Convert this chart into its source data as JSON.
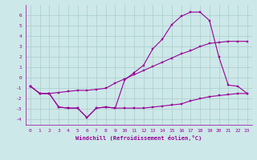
{
  "xlabel": "Windchill (Refroidissement éolien,°C)",
  "background_color": "#cde8e8",
  "line_color": "#990099",
  "grid_color": "#aacccc",
  "xlim": [
    -0.5,
    23.5
  ],
  "ylim": [
    -4.5,
    7.0
  ],
  "yticks": [
    -4,
    -3,
    -2,
    -1,
    0,
    1,
    2,
    3,
    4,
    5,
    6
  ],
  "xticks": [
    0,
    1,
    2,
    3,
    4,
    5,
    6,
    7,
    8,
    9,
    10,
    11,
    12,
    13,
    14,
    15,
    16,
    17,
    18,
    19,
    20,
    21,
    22,
    23
  ],
  "line1_x": [
    0,
    1,
    2,
    3,
    4,
    5,
    6,
    7,
    8,
    9,
    10,
    11,
    12,
    13,
    14,
    15,
    16,
    17,
    18,
    19,
    20,
    21,
    22,
    23
  ],
  "line1_y": [
    -0.8,
    -1.5,
    -1.5,
    -2.8,
    -2.9,
    -2.9,
    -3.8,
    -2.9,
    -2.8,
    -2.9,
    -2.9,
    -2.9,
    -2.9,
    -2.8,
    -2.7,
    -2.6,
    -2.5,
    -2.2,
    -2.0,
    -1.8,
    -1.7,
    -1.6,
    -1.5,
    -1.5
  ],
  "line2_x": [
    0,
    1,
    2,
    3,
    4,
    5,
    6,
    7,
    8,
    9,
    10,
    11,
    12,
    13,
    14,
    15,
    16,
    17,
    18,
    19,
    20,
    21,
    22,
    23
  ],
  "line2_y": [
    -0.8,
    -1.5,
    -1.5,
    -1.4,
    -1.3,
    -1.2,
    -1.2,
    -1.1,
    -1.0,
    -0.5,
    -0.1,
    0.3,
    0.7,
    1.1,
    1.5,
    1.9,
    2.3,
    2.6,
    3.0,
    3.3,
    3.4,
    3.5,
    3.5,
    3.5
  ],
  "line3_x": [
    0,
    1,
    2,
    3,
    4,
    5,
    6,
    7,
    8,
    9,
    10,
    11,
    12,
    13,
    14,
    15,
    16,
    17,
    18,
    19,
    20,
    21,
    22,
    23
  ],
  "line3_y": [
    -0.8,
    -1.5,
    -1.5,
    -2.8,
    -2.9,
    -2.9,
    -3.8,
    -2.9,
    -2.8,
    -2.9,
    -0.2,
    0.5,
    1.2,
    2.8,
    3.7,
    5.1,
    5.9,
    6.3,
    6.3,
    5.5,
    2.0,
    -0.7,
    -0.8,
    -1.5
  ],
  "marker_size": 2.0,
  "line_width": 0.8,
  "tick_fontsize": 4.5,
  "xlabel_fontsize": 5.0
}
